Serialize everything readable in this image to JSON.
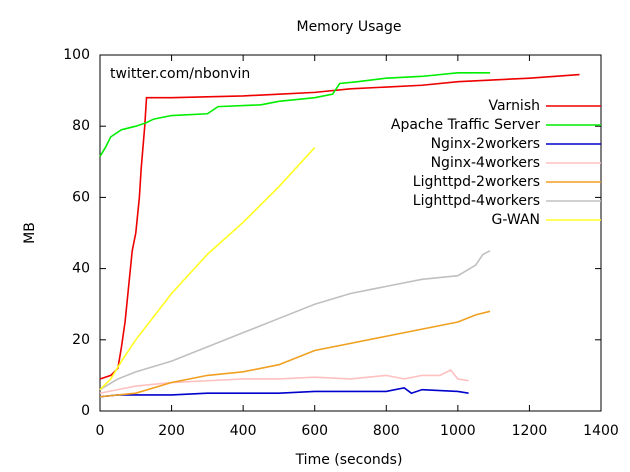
{
  "chart_data": {
    "type": "line",
    "title": "Memory Usage",
    "annotation": "twitter.com/nbonvin",
    "x_label": "Time (seconds)",
    "y_label": "MB",
    "xlim": [
      0,
      1400
    ],
    "ylim": [
      0,
      100
    ],
    "xticks": [
      0,
      200,
      400,
      600,
      800,
      1000,
      1200,
      1400
    ],
    "yticks": [
      0,
      20,
      40,
      60,
      80,
      100
    ],
    "grid": false,
    "legend": "top-right",
    "series": [
      {
        "name": "Varnish",
        "color": "#ee0000",
        "x": [
          0,
          30,
          50,
          60,
          70,
          80,
          90,
          100,
          110,
          115,
          125,
          130,
          200,
          400,
          500,
          600,
          700,
          800,
          900,
          1000,
          1100,
          1200,
          1340
        ],
        "values": [
          9,
          10,
          12,
          18,
          25,
          35,
          45,
          50,
          60,
          68,
          80,
          88,
          88,
          88.5,
          89,
          89.5,
          90.5,
          91,
          91.5,
          92.5,
          93,
          93.5,
          94.5
        ]
      },
      {
        "name": "Apache Traffic Server",
        "color": "#00ee00",
        "x": [
          0,
          15,
          30,
          60,
          100,
          130,
          150,
          200,
          300,
          330,
          450,
          500,
          600,
          650,
          670,
          720,
          800,
          900,
          1000,
          1090
        ],
        "values": [
          71.5,
          74,
          77,
          79,
          80,
          81,
          82,
          83,
          83.5,
          85.5,
          86,
          87,
          88,
          89,
          92,
          92.5,
          93.5,
          94,
          95,
          95
        ]
      },
      {
        "name": "Nginx-2workers",
        "color": "#0000cc",
        "x": [
          0,
          50,
          200,
          300,
          400,
          500,
          600,
          700,
          800,
          850,
          870,
          900,
          1000,
          1030
        ],
        "values": [
          4,
          4.5,
          4.5,
          5,
          5,
          5,
          5.5,
          5.5,
          5.5,
          6.5,
          5,
          6,
          5.5,
          5
        ]
      },
      {
        "name": "Nginx-4workers",
        "color": "#ffc0c0",
        "x": [
          0,
          50,
          100,
          200,
          300,
          400,
          500,
          600,
          700,
          800,
          850,
          900,
          950,
          980,
          1000,
          1030
        ],
        "values": [
          5,
          6,
          7,
          8,
          8.5,
          9,
          9,
          9.5,
          9,
          10,
          9,
          10,
          10,
          11.5,
          9,
          8.5
        ]
      },
      {
        "name": "Lighttpd-2workers",
        "color": "#f0a020",
        "x": [
          0,
          100,
          200,
          300,
          400,
          500,
          600,
          700,
          800,
          900,
          1000,
          1050,
          1090
        ],
        "values": [
          4,
          5,
          8,
          10,
          11,
          13,
          17,
          19,
          21,
          23,
          25,
          27,
          28
        ]
      },
      {
        "name": "Lighttpd-4workers",
        "color": "#c0c0c0",
        "x": [
          0,
          50,
          100,
          200,
          300,
          400,
          500,
          600,
          700,
          800,
          900,
          1000,
          1050,
          1070,
          1090
        ],
        "values": [
          6,
          9,
          11,
          14,
          18,
          22,
          26,
          30,
          33,
          35,
          37,
          38,
          41,
          44,
          45
        ]
      },
      {
        "name": "G-WAN",
        "color": "#ffff20",
        "x": [
          0,
          30,
          60,
          100,
          200,
          300,
          400,
          500,
          600
        ],
        "values": [
          6,
          9,
          14,
          20,
          33,
          44,
          53,
          63,
          74
        ]
      }
    ]
  }
}
